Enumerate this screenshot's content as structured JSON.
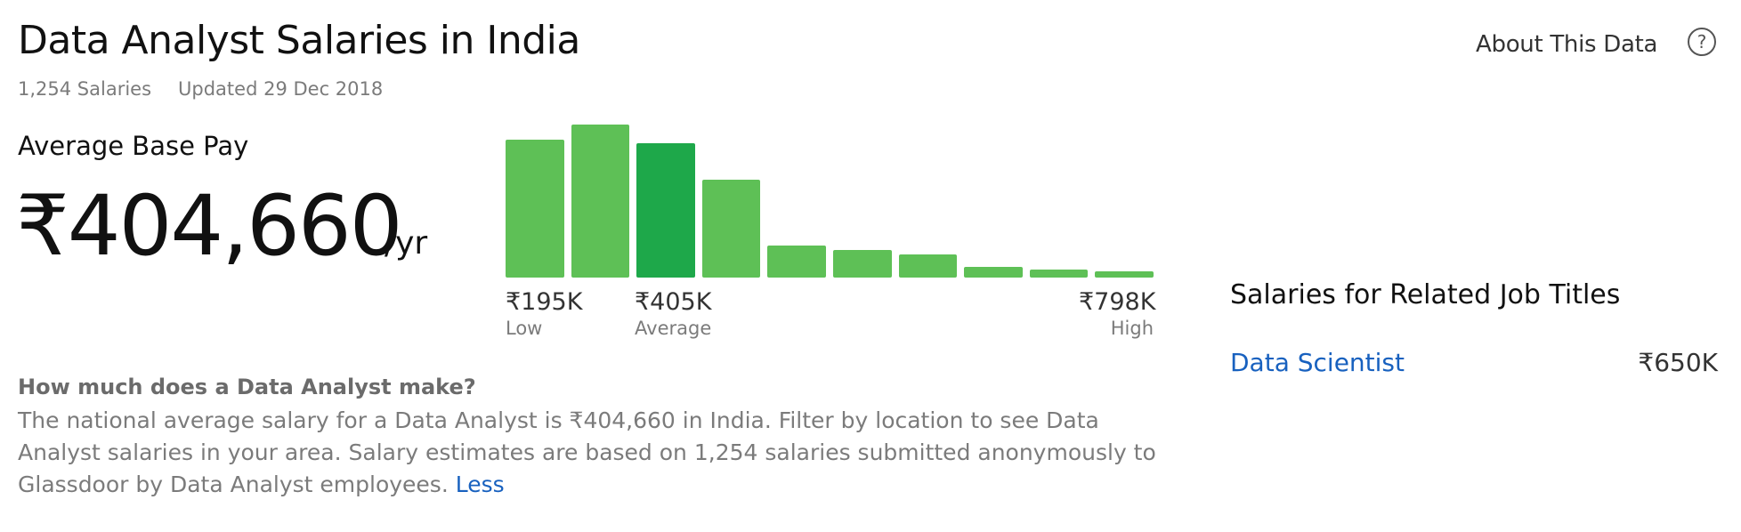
{
  "header": {
    "title": "Data Analyst Salaries in India",
    "salary_count": "1,254 Salaries",
    "updated": "Updated 29 Dec 2018",
    "about_label": "About This Data",
    "help_icon": "?"
  },
  "average": {
    "label": "Average Base Pay",
    "value": "₹404,660",
    "unit": "/yr"
  },
  "chart_data": {
    "type": "bar",
    "title": "",
    "values": [
      0.9,
      1.0,
      0.88,
      0.64,
      0.21,
      0.18,
      0.15,
      0.07,
      0.05,
      0.04
    ],
    "highlight_index": 2,
    "colors": {
      "bar": "#5ec056",
      "highlight": "#1ea84a"
    },
    "ticks": [
      {
        "value": "₹195K",
        "label": "Low"
      },
      {
        "value": "₹405K",
        "label": "Average"
      },
      {
        "value": "₹798K",
        "label": "High"
      }
    ]
  },
  "faq": {
    "question": "How much does a Data Analyst make?",
    "answer": "The national average salary for a Data Analyst is ₹404,660 in India. Filter by location to see Data Analyst salaries in your area. Salary estimates are based on 1,254 salaries submitted anonymously to Glassdoor by Data Analyst employees.",
    "less_label": "Less"
  },
  "related": {
    "title": "Salaries for Related Job Titles",
    "items": [
      {
        "title": "Data Scientist",
        "pay": "₹650K"
      }
    ]
  },
  "colors": {
    "link": "#1861bf",
    "muted": "#7b7b7b",
    "text": "#111111"
  }
}
